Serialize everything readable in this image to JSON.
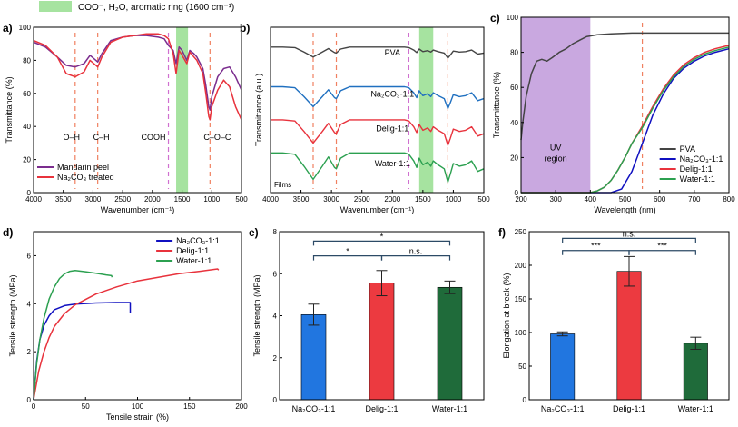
{
  "legend_top": {
    "text": "COO⁻, H₂O, aromatic ring (1600 cm⁻¹)",
    "color": "#a6e3a0"
  },
  "chart_data": [
    {
      "id": "a",
      "type": "line",
      "label": "a)",
      "xlabel": "Wavenumber (cm⁻¹)",
      "ylabel": "Transmittance (%)",
      "xlim": [
        4000,
        500
      ],
      "ylim": [
        0,
        100
      ],
      "xticks": [
        "4000",
        "3500",
        "3000",
        "2500",
        "2000",
        "1500",
        "1000",
        "500"
      ],
      "yticks": [
        "0",
        "20",
        "40",
        "60",
        "80",
        "100"
      ],
      "vlines": [
        {
          "x": 3300,
          "color": "#f08060",
          "label": "O–H"
        },
        {
          "x": 2920,
          "color": "#f08060",
          "label": "C–H"
        },
        {
          "x": 1730,
          "color": "#d070d0",
          "label": "COOH"
        },
        {
          "x": 1030,
          "color": "#f08060",
          "label": "C–O–C"
        }
      ],
      "band": [
        1600,
        1400
      ],
      "series": [
        {
          "name": "Mandarin peel",
          "color": "#7b2d8e",
          "x": [
            4000,
            3800,
            3600,
            3450,
            3300,
            3150,
            3050,
            2950,
            2920,
            2850,
            2700,
            2500,
            2300,
            2100,
            1900,
            1800,
            1730,
            1650,
            1600,
            1550,
            1500,
            1420,
            1370,
            1300,
            1250,
            1150,
            1100,
            1050,
            1030,
            1000,
            900,
            800,
            700,
            600,
            500
          ],
          "y": [
            91,
            88,
            82,
            77,
            76,
            78,
            83,
            80,
            79,
            84,
            92,
            94,
            95,
            95,
            94,
            93,
            89,
            86,
            78,
            88,
            86,
            80,
            86,
            84,
            82,
            75,
            65,
            52,
            50,
            58,
            70,
            75,
            76,
            70,
            62
          ]
        },
        {
          "name": "Na₂CO₃ treated",
          "color": "#e8323c",
          "x": [
            4000,
            3800,
            3600,
            3450,
            3300,
            3150,
            3050,
            2950,
            2920,
            2850,
            2700,
            2500,
            2300,
            2100,
            1900,
            1800,
            1730,
            1650,
            1600,
            1550,
            1500,
            1420,
            1370,
            1300,
            1250,
            1150,
            1100,
            1050,
            1030,
            1000,
            900,
            800,
            700,
            600,
            500
          ],
          "y": [
            92,
            89,
            82,
            72,
            70,
            73,
            80,
            77,
            76,
            82,
            91,
            94,
            95,
            96,
            96,
            95,
            93,
            84,
            72,
            86,
            83,
            78,
            85,
            82,
            80,
            72,
            60,
            46,
            44,
            52,
            62,
            68,
            64,
            52,
            44
          ]
        }
      ]
    },
    {
      "id": "b",
      "type": "line",
      "label": "b)",
      "xlabel": "Wavenumber (cm⁻¹)",
      "ylabel": "Transmittance (a.u.)",
      "xlim": [
        4000,
        500
      ],
      "xticks": [
        "4000",
        "3500",
        "3000",
        "2500",
        "2000",
        "1500",
        "1000",
        "500"
      ],
      "corner_label": "Films",
      "vlines": [
        {
          "x": 3300,
          "color": "#f08060"
        },
        {
          "x": 2920,
          "color": "#f08060"
        },
        {
          "x": 1730,
          "color": "#d070d0"
        },
        {
          "x": 1090,
          "color": "#f08060"
        }
      ],
      "band": [
        1560,
        1330
      ],
      "series": [
        {
          "name": "PVA",
          "color": "#444444",
          "offset": 88,
          "amp": 6
        },
        {
          "name": "Na₂CO₃-1:1",
          "color": "#2070c0",
          "offset": 64,
          "amp": 12
        },
        {
          "name": "Delig-1:1",
          "color": "#e8323c",
          "offset": 44,
          "amp": 14
        },
        {
          "name": "Water-1:1",
          "color": "#2ca050",
          "offset": 24,
          "amp": 16
        }
      ],
      "shape_x": [
        4000,
        3800,
        3600,
        3450,
        3300,
        3150,
        3050,
        2950,
        2920,
        2850,
        2700,
        2500,
        2300,
        2100,
        1900,
        1800,
        1730,
        1650,
        1600,
        1560,
        1500,
        1420,
        1370,
        1330,
        1250,
        1150,
        1090,
        1050,
        1000,
        900,
        800,
        700,
        600,
        500
      ],
      "shape_y": [
        0,
        0,
        -0.05,
        -0.5,
        -1,
        -0.5,
        -0.15,
        -0.55,
        -0.6,
        -0.2,
        0,
        0,
        0,
        0,
        0,
        0,
        -0.05,
        -0.3,
        -0.55,
        -0.2,
        -0.45,
        -0.35,
        -0.5,
        -0.3,
        -0.45,
        -0.6,
        -1.1,
        -0.8,
        -0.4,
        -0.5,
        -0.45,
        -0.3,
        -0.7,
        -0.6
      ]
    },
    {
      "id": "c",
      "type": "line",
      "label": "c)",
      "xlabel": "Wavelength (nm)",
      "ylabel": "Transmittance (%)",
      "xlim": [
        200,
        800
      ],
      "ylim": [
        0,
        100
      ],
      "xticks": [
        "200",
        "300",
        "400",
        "500",
        "600",
        "700",
        "800"
      ],
      "yticks": [
        "0",
        "20",
        "40",
        "60",
        "80",
        "100"
      ],
      "region": {
        "from": 200,
        "to": 400,
        "label_1": "UV",
        "label_2": "region",
        "color": "#c9a8e0"
      },
      "vline": {
        "x": 550,
        "color": "#f08060"
      },
      "series": [
        {
          "name": "PVA",
          "color": "#444444",
          "x": [
            200,
            205,
            215,
            230,
            245,
            260,
            275,
            290,
            310,
            330,
            350,
            370,
            390,
            420,
            460,
            520,
            600,
            700,
            800
          ],
          "y": [
            30,
            40,
            55,
            68,
            75,
            76,
            75,
            77,
            80,
            82,
            85,
            87,
            89,
            90,
            90.5,
            91,
            91,
            91,
            91
          ]
        },
        {
          "name": "Na₂CO₃-1:1",
          "color": "#1010c0",
          "x": [
            200,
            400,
            430,
            460,
            490,
            520,
            550,
            580,
            610,
            640,
            670,
            700,
            730,
            760,
            800
          ],
          "y": [
            0,
            0,
            0,
            0,
            2,
            12,
            28,
            44,
            56,
            65,
            71,
            75,
            78,
            80,
            82
          ]
        },
        {
          "name": "Delig-1:1",
          "color": "#e8323c",
          "x": [
            200,
            400,
            420,
            440,
            460,
            480,
            500,
            520,
            550,
            580,
            610,
            640,
            670,
            700,
            730,
            760,
            800
          ],
          "y": [
            0,
            0,
            1,
            3,
            7,
            13,
            20,
            28,
            38,
            49,
            59,
            67,
            73,
            77,
            80,
            82,
            84
          ]
        },
        {
          "name": "Water-1:1",
          "color": "#2ca050",
          "x": [
            200,
            400,
            420,
            440,
            460,
            480,
            500,
            520,
            550,
            580,
            610,
            640,
            670,
            700,
            730,
            760,
            800
          ],
          "y": [
            0,
            0,
            1,
            3,
            7,
            13,
            20,
            28,
            37,
            48,
            58,
            66,
            72,
            76,
            79,
            81,
            83
          ]
        }
      ]
    },
    {
      "id": "d",
      "type": "line",
      "label": "d)",
      "xlabel": "Tensile strain (%)",
      "ylabel": "Tensile strength (MPa)",
      "xlim": [
        0,
        200
      ],
      "ylim": [
        0,
        7
      ],
      "xticks": [
        "0",
        "50",
        "100",
        "150",
        "200"
      ],
      "yticks": [
        "0",
        "2",
        "4",
        "6"
      ],
      "series": [
        {
          "name": "Na₂CO₃-1:1",
          "color": "#1010c0",
          "x": [
            0,
            3,
            6,
            10,
            15,
            20,
            30,
            40,
            60,
            80,
            93,
            93
          ],
          "y": [
            0,
            1.6,
            2.5,
            3.1,
            3.5,
            3.75,
            3.92,
            3.98,
            4.03,
            4.05,
            4.05,
            3.6
          ]
        },
        {
          "name": "Delig-1:1",
          "color": "#e8323c",
          "x": [
            0,
            5,
            10,
            15,
            20,
            30,
            40,
            60,
            80,
            100,
            120,
            140,
            160,
            177,
            178
          ],
          "y": [
            0,
            1.2,
            2.0,
            2.6,
            3.05,
            3.6,
            3.95,
            4.4,
            4.7,
            4.95,
            5.1,
            5.25,
            5.35,
            5.45,
            5.4
          ]
        },
        {
          "name": "Water-1:1",
          "color": "#2ca050",
          "x": [
            0,
            3,
            6,
            10,
            15,
            20,
            25,
            30,
            35,
            40,
            50,
            60,
            70,
            75,
            75.5
          ],
          "y": [
            0,
            1.5,
            2.5,
            3.4,
            4.2,
            4.7,
            5.05,
            5.25,
            5.35,
            5.38,
            5.33,
            5.27,
            5.2,
            5.17,
            5.1
          ]
        }
      ]
    },
    {
      "id": "e",
      "type": "bar",
      "label": "e)",
      "ylabel": "Tensile strength (MPa)",
      "ylim": [
        0,
        8
      ],
      "yticks": [
        "0",
        "2",
        "4",
        "6",
        "8"
      ],
      "categories": [
        "Na₂CO₃-1:1",
        "Delig-1:1",
        "Water-1:1"
      ],
      "values": [
        4.05,
        5.55,
        5.35
      ],
      "errors": [
        0.5,
        0.6,
        0.3
      ],
      "colors": [
        "#2176e0",
        "#ec3a40",
        "#1f6b3a"
      ],
      "significance": [
        {
          "from": 0,
          "to": 1,
          "label": "*",
          "level": 6.85
        },
        {
          "from": 0,
          "to": 2,
          "label": "*",
          "level": 7.55
        },
        {
          "from": 1,
          "to": 2,
          "label": "n.s.",
          "level": 6.85
        }
      ]
    },
    {
      "id": "f",
      "type": "bar",
      "label": "f)",
      "ylabel": "Elongation at break (%)",
      "ylim": [
        0,
        250
      ],
      "yticks": [
        "0",
        "50",
        "100",
        "150",
        "200",
        "250"
      ],
      "categories": [
        "Na₂CO₃-1:1",
        "Delig-1:1",
        "Water-1:1"
      ],
      "values": [
        98,
        191,
        84
      ],
      "errors": [
        3,
        22,
        9
      ],
      "colors": [
        "#2176e0",
        "#ec3a40",
        "#1f6b3a"
      ],
      "significance": [
        {
          "from": 0,
          "to": 1,
          "label": "***",
          "level": 222
        },
        {
          "from": 0,
          "to": 2,
          "label": "n.s.",
          "level": 240
        },
        {
          "from": 1,
          "to": 2,
          "label": "***",
          "level": 222
        }
      ]
    }
  ]
}
